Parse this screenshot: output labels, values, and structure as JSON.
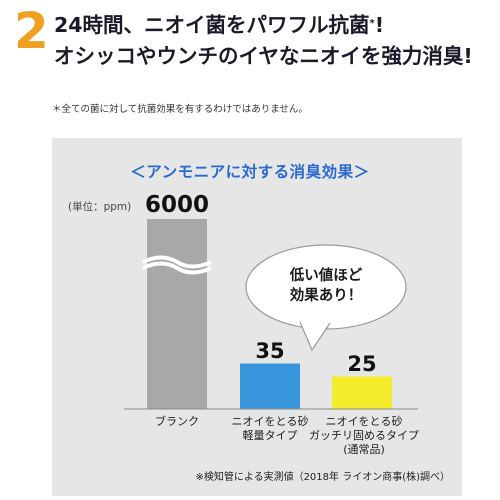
{
  "headline": {
    "number": "2",
    "line1_prefix": "24時間、ニオイ菌をパワフル抗菌",
    "line1_mark": "*",
    "line1_suffix": "!",
    "line2": "オシッコやウンチのイヤなニオイを強力消臭!"
  },
  "note": "＊全ての菌に対して抗菌効果を有するわけではありません。",
  "chart_data": {
    "type": "bar",
    "title": "＜アンモニアに対する消臭効果＞",
    "unit_label": "(単位：ppm)",
    "categories": [
      "ブランク",
      "ニオイをとる砂\n軽量タイプ",
      "ニオイをとる砂\nガッチリ固めるタイプ\n(通常品)"
    ],
    "values": [
      6000,
      35,
      25
    ],
    "value_labels": [
      "6000",
      "35",
      "25"
    ],
    "colors": [
      "#a8a8a8",
      "#3a96dc",
      "#f4ec2a"
    ],
    "axis_break": true,
    "callout": "低い値ほど\n効果あり！",
    "footnote": "※検知管による実測値（2018年 ライオン商事(株)調べ）"
  },
  "colors": {
    "accent_orange": "#f0a020",
    "title_blue": "#2a6ad0",
    "panel_gray": "#e6e6e7"
  }
}
